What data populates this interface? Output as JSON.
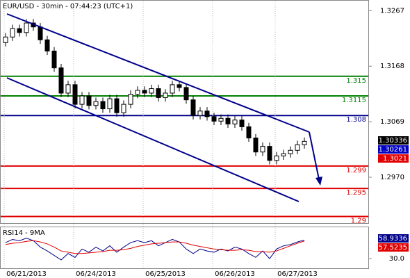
{
  "chart_data": [
    {
      "type": "candlestick",
      "title": "EUR/USD - 30min - 07:44:23 (UTC+1)",
      "categories": [
        null,
        null,
        null,
        "06/21/2013",
        null,
        null,
        null,
        null,
        null,
        null,
        null,
        null,
        null,
        "06/24/2013",
        null,
        null,
        null,
        null,
        null,
        null,
        null,
        null,
        null,
        "06/25/2013",
        null,
        null,
        null,
        null,
        null,
        null,
        null,
        null,
        null,
        "06/26/2013",
        null,
        null,
        null,
        null,
        null,
        null,
        null,
        null,
        "06/27/2013",
        null
      ],
      "open": [
        1.321,
        1.322,
        1.3235,
        1.3228,
        1.3245,
        1.3238,
        1.3215,
        1.3195,
        1.3165,
        1.312,
        1.3135,
        1.31,
        1.3115,
        1.3098,
        1.3105,
        1.3092,
        1.311,
        1.3085,
        1.31,
        1.3118,
        1.3125,
        1.312,
        1.3128,
        1.3112,
        1.312,
        1.3135,
        1.313,
        1.3108,
        1.308,
        1.3088,
        1.3078,
        1.307,
        1.3075,
        1.3065,
        1.3072,
        1.306,
        1.304,
        1.3015,
        1.3025,
        1.3,
        1.3008,
        1.3012,
        1.3018,
        1.3028
      ],
      "high": [
        1.3227,
        1.3242,
        1.3242,
        1.3252,
        1.3252,
        1.3245,
        1.3222,
        1.3202,
        1.3172,
        1.3142,
        1.3142,
        1.3122,
        1.3122,
        1.3112,
        1.3112,
        1.3117,
        1.3117,
        1.3107,
        1.3125,
        1.3132,
        1.3132,
        1.3135,
        1.3135,
        1.3127,
        1.3142,
        1.3142,
        1.3137,
        1.3115,
        1.3095,
        1.3095,
        1.3085,
        1.3082,
        1.3082,
        1.3079,
        1.3079,
        1.3067,
        1.3047,
        1.3032,
        1.3032,
        1.3015,
        1.3019,
        1.3025,
        1.3035,
        1.3041
      ],
      "low": [
        1.3203,
        1.3213,
        1.3221,
        1.3221,
        1.3231,
        1.3208,
        1.3188,
        1.3158,
        1.3113,
        1.3113,
        1.3093,
        1.3093,
        1.3091,
        1.3091,
        1.3085,
        1.3085,
        1.3078,
        1.3078,
        1.3093,
        1.3111,
        1.3113,
        1.3113,
        1.3105,
        1.3105,
        1.3113,
        1.3123,
        1.3101,
        1.3073,
        1.3073,
        1.3071,
        1.3063,
        1.3063,
        1.3058,
        1.3058,
        1.3053,
        1.3033,
        1.3008,
        1.3008,
        1.2993,
        1.2993,
        1.3001,
        1.3005,
        1.3011,
        1.3021
      ],
      "close": [
        1.322,
        1.3235,
        1.3228,
        1.3245,
        1.3238,
        1.3215,
        1.3195,
        1.3165,
        1.312,
        1.3135,
        1.31,
        1.3115,
        1.3098,
        1.3105,
        1.3092,
        1.311,
        1.3085,
        1.31,
        1.3118,
        1.3125,
        1.312,
        1.3128,
        1.3112,
        1.312,
        1.3135,
        1.313,
        1.3108,
        1.308,
        1.3088,
        1.3078,
        1.307,
        1.3075,
        1.3065,
        1.3072,
        1.306,
        1.304,
        1.3015,
        1.3025,
        1.3,
        1.3008,
        1.3012,
        1.3018,
        1.3028,
        1.3034
      ],
      "ylim": [
        1.2887,
        1.3286
      ],
      "yticks": [
        1.3267,
        1.3168,
        1.3069,
        {
          "value": 1.297,
          "label": "1.2970"
        }
      ],
      "levels": [
        {
          "value": 1.315,
          "color": "#008000"
        },
        {
          "value": 1.3115,
          "color": "#008000"
        },
        {
          "value": 1.308,
          "color": "#00008b"
        },
        {
          "value": 1.299,
          "color": "#e00000"
        },
        {
          "value": 1.295,
          "color": "#e00000"
        },
        {
          "value": 1.29,
          "color": "#e00000"
        }
      ],
      "price_badges": [
        {
          "value": 1.30336,
          "color": "#000000"
        },
        {
          "value": 1.30261,
          "color": "#0000c0"
        },
        {
          "value": 1.3021,
          "color": "#e00000"
        }
      ]
    },
    {
      "type": "line",
      "title": "RSI14 - 9MA",
      "series": [
        {
          "name": "RSI14",
          "color": "#00008b",
          "values": [
            55,
            60,
            58,
            62,
            58,
            48,
            42,
            35,
            28,
            38,
            32,
            45,
            40,
            48,
            42,
            50,
            40,
            48,
            55,
            58,
            55,
            58,
            50,
            55,
            60,
            56,
            45,
            38,
            45,
            42,
            40,
            45,
            42,
            48,
            45,
            38,
            32,
            42,
            30,
            45,
            50,
            52,
            56,
            58.9336
          ]
        },
        {
          "name": "9MA",
          "color": "#e00000",
          "values": [
            52,
            54,
            55,
            57,
            58,
            56,
            53,
            48,
            42,
            40,
            38,
            38,
            39,
            40,
            41,
            43,
            43,
            44,
            46,
            49,
            51,
            53,
            54,
            55,
            56,
            56,
            54,
            51,
            49,
            47,
            45,
            44,
            43,
            43,
            44,
            43,
            41,
            41,
            40,
            42,
            46,
            50,
            54,
            57.5235
          ]
        }
      ],
      "ylim": [
        15,
        80
      ],
      "yticks": [
        {
          "value": 30,
          "label": "30.0"
        }
      ]
    }
  ]
}
